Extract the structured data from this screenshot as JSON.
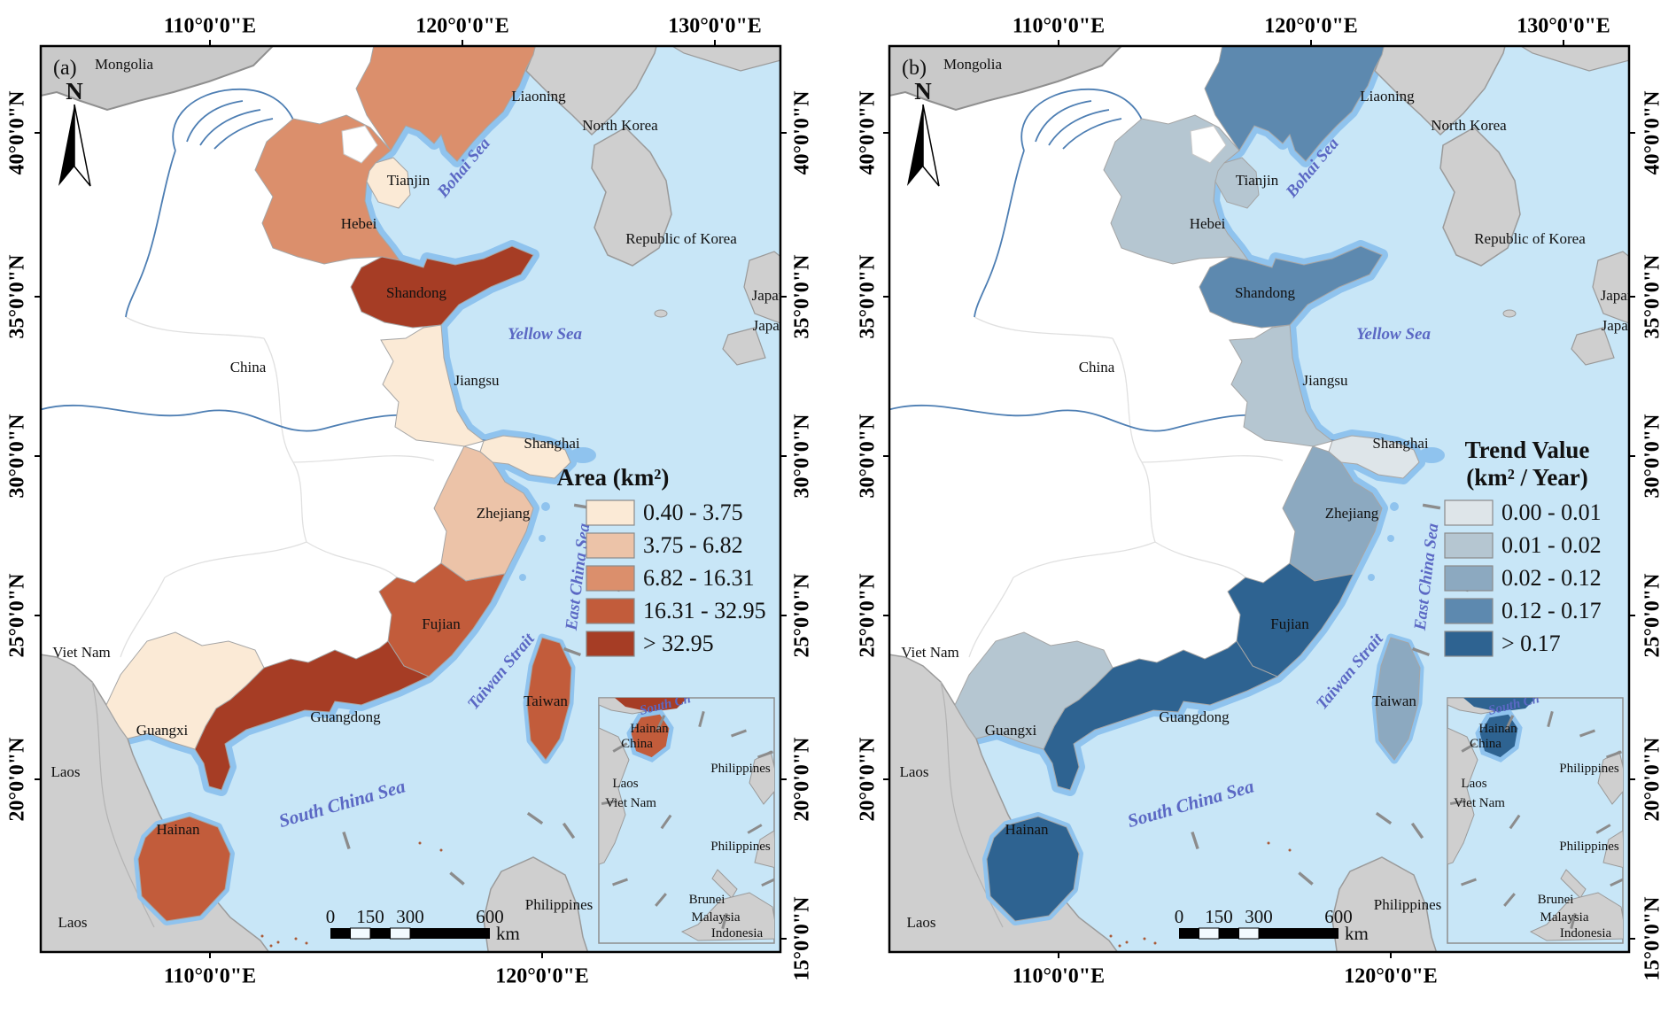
{
  "figure": {
    "axes": {
      "lon": [
        "110°0'0\"E",
        "120°0'0\"E",
        "130°0'0\"E"
      ],
      "lat": [
        "40°0'0\"N",
        "35°0'0\"N",
        "30°0'0\"N",
        "25°0'0\"N",
        "20°0'0\"N",
        "15°0'0\"N"
      ]
    },
    "panels": [
      {
        "label": "(a)",
        "legend": {
          "title_lines": [
            "Area (km²)"
          ],
          "classes": [
            {
              "range": "0.40 - 3.75",
              "color": "#FBEAD6"
            },
            {
              "range": "3.75 - 6.82",
              "color": "#ECC3A8"
            },
            {
              "range": "6.82 - 16.31",
              "color": "#DB8F6C"
            },
            {
              "range": "16.31 - 32.95",
              "color": "#C25C3B"
            },
            {
              "range": "> 32.95",
              "color": "#A63D25"
            }
          ]
        },
        "province_classes": {
          "liaoning": 2,
          "tianjin": 0,
          "hebei": 2,
          "shandong": 4,
          "jiangsu": 0,
          "shanghai": 0,
          "zhejiang": 1,
          "fujian": 3,
          "guangdong": 4,
          "guangxi": 0,
          "hainan": 3,
          "taiwan": 3
        }
      },
      {
        "label": "(b)",
        "legend": {
          "title_lines": [
            "Trend Value",
            "(km² / Year)"
          ],
          "classes": [
            {
              "range": "0.00 - 0.01",
              "color": "#DEE5E9"
            },
            {
              "range": "0.01 - 0.02",
              "color": "#B5C6D1"
            },
            {
              "range": "0.02 - 0.12",
              "color": "#8CA9C0"
            },
            {
              "range": "0.12 - 0.17",
              "color": "#5D89AF"
            },
            {
              "range": "> 0.17",
              "color": "#2E6391"
            }
          ]
        },
        "province_classes": {
          "liaoning": 3,
          "tianjin": 1,
          "hebei": 1,
          "shandong": 3,
          "jiangsu": 1,
          "shanghai": 0,
          "zhejiang": 2,
          "fujian": 4,
          "guangdong": 4,
          "guangxi": 1,
          "hainan": 4,
          "taiwan": 2
        }
      }
    ],
    "labels": {
      "provinces": {
        "liaoning": "Liaoning",
        "tianjin": "Tianjin",
        "hebei": "Hebei",
        "shandong": "Shandong",
        "jiangsu": "Jiangsu",
        "shanghai": "Shanghai",
        "zhejiang": "Zhejiang",
        "fujian": "Fujian",
        "guangdong": "Guangdong",
        "guangxi": "Guangxi",
        "hainan": "Hainan",
        "taiwan": "Taiwan"
      },
      "countries": {
        "mongolia": "Mongolia",
        "north_korea": "North Korea",
        "republic_of_korea": "Republic of Korea",
        "japan": "Japan",
        "china": "China",
        "viet_nam": "Viet Nam",
        "laos": "Laos",
        "philippines": "Philippines",
        "brunei": "Brunei",
        "malaysia": "Malaysia",
        "indonesia": "Indonesia"
      },
      "seas": {
        "bohai": "Bohai Sea",
        "yellow": "Yellow Sea",
        "east_china": "East China Sea",
        "south_china": "South China Sea",
        "taiwan_strait": "Taiwan Strait",
        "south_china_short": "South Ch"
      }
    },
    "north_arrow": "N",
    "scalebar": {
      "ticks": [
        "0",
        "150",
        "300",
        "600"
      ],
      "unit": "km"
    },
    "colors": {
      "sea": "#C8E6F7",
      "coastal_buffer": "#8FC3EE",
      "land_gray": "#CFCFCF",
      "land_border": "#9A9A9A",
      "china_fill": "#FFFFFF",
      "river": "#4D7EB3",
      "sea_label": "#5B68C4",
      "frame": "#000000",
      "dash": "#8C8C8C",
      "speck": "#A95A38"
    }
  }
}
